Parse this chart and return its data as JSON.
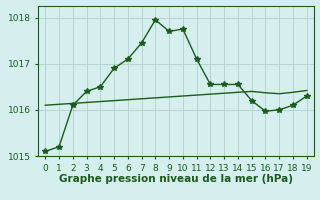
{
  "x": [
    0,
    1,
    2,
    3,
    4,
    5,
    6,
    7,
    8,
    9,
    10,
    11,
    12,
    13,
    14,
    15,
    16,
    17,
    18,
    19
  ],
  "y_main": [
    1015.1,
    1015.2,
    1016.1,
    1016.4,
    1016.5,
    1016.9,
    1017.1,
    1017.45,
    1017.95,
    1017.7,
    1017.75,
    1017.1,
    1016.55,
    1016.55,
    1016.55,
    1016.2,
    1015.97,
    1016.0,
    1016.1,
    1016.3
  ],
  "y_smooth": [
    1016.1,
    1016.12,
    1016.14,
    1016.16,
    1016.18,
    1016.2,
    1016.22,
    1016.24,
    1016.26,
    1016.28,
    1016.3,
    1016.32,
    1016.34,
    1016.36,
    1016.38,
    1016.4,
    1016.37,
    1016.35,
    1016.38,
    1016.42
  ],
  "line_color": "#1a5c1a",
  "bg_color": "#d5eeee",
  "grid_color": "#b0d0cc",
  "xlabel": "Graphe pression niveau de la mer (hPa)",
  "ylim": [
    1015.0,
    1018.25
  ],
  "yticks": [
    1015,
    1016,
    1017,
    1018
  ],
  "xticks": [
    0,
    1,
    2,
    3,
    4,
    5,
    6,
    7,
    8,
    9,
    10,
    11,
    12,
    13,
    14,
    15,
    16,
    17,
    18,
    19
  ],
  "marker": "*",
  "marker_size": 4,
  "linewidth": 1.0,
  "xlabel_fontsize": 7.5,
  "tick_fontsize": 6.5
}
